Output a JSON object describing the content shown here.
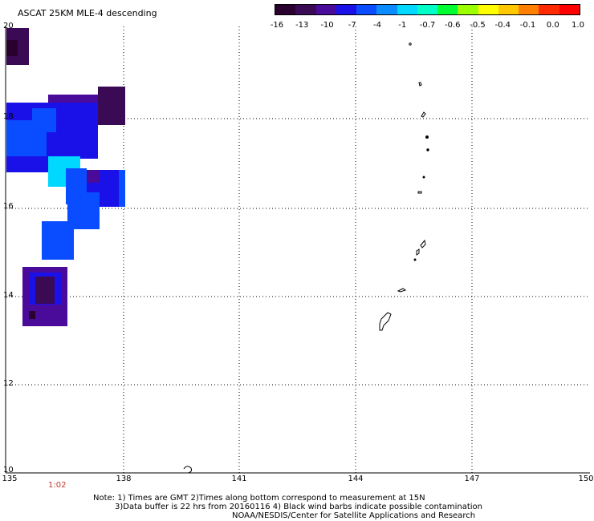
{
  "title": "ASCAT 25KM MLE-4 descending",
  "colorbar": {
    "colors": [
      "#2a002e",
      "#3a0a55",
      "#4a0a9a",
      "#1a10e8",
      "#0a4cff",
      "#0a8cff",
      "#00d8ff",
      "#00ffc8",
      "#00ff30",
      "#9cff00",
      "#ffff00",
      "#ffc800",
      "#ff8000",
      "#ff2a00",
      "#ff0000"
    ],
    "labels": [
      "-16",
      "-13",
      "-10",
      "-7",
      "-4",
      "-1",
      "-0.7",
      "-0.6",
      "-0.5",
      "-0.4",
      "-0.1",
      "0.0",
      "1.0"
    ]
  },
  "axes": {
    "lat_labels": [
      "20",
      "18",
      "16",
      "14",
      "12",
      "10"
    ],
    "lon_labels": [
      "135",
      "138",
      "141",
      "144",
      "147",
      "150"
    ]
  },
  "time_label": "1:02",
  "notes": [
    "Note: 1) Times are GMT 2)Times along bottom correspond to measurement at 15N",
    "3)Data buffer is 22 hrs from 20160116 4) Black wind barbs indicate possible contamination",
    "NOAA/NESDIS/Center for Satellite Applications and Research"
  ]
}
